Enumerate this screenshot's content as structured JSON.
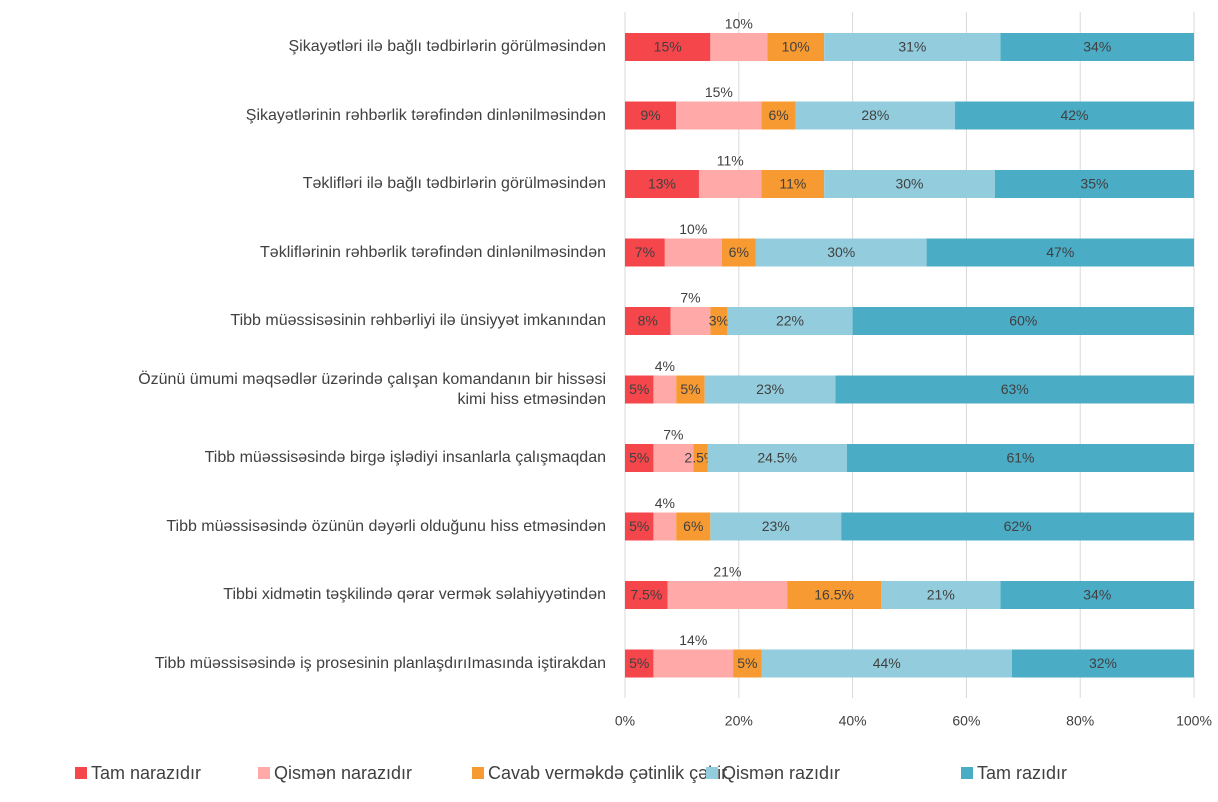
{
  "chart_data": {
    "type": "stacked-bar-horizontal",
    "categories": [
      "Şikayətləri ilə bağlı tədbirlərin görülməsindən",
      "Şikayətlərinin rəhbərlik tərəfindən dinlənilməsindən",
      "Təklifləri ilə bağlı tədbirlərin görülməsindən",
      "Təkliflərinin rəhbərlik tərəfindən dinlənilməsindən",
      "Tibb müəssisəsinin rəhbərliyi ilə ünsiyyət imkanından",
      "Özünü ümumi məqsədlər üzərində çalışan komandanın bir hissəsi\nkimi hiss etməsindən",
      "Tibb müəssisəsində birgə işlədiyi insanlarla çalışmaqdan",
      "Tibb müəssisəsində özünün dəyərli olduğunu hiss etməsindən",
      "Tibbi xidmətin təşkilində qərar vermək səlahiyyətindən",
      "Tibb müəssisəsində iş prosesinin planlaşdırıImasında iştirakdan"
    ],
    "series": [
      {
        "name": "Tam narazıdır",
        "color": "#f5464c",
        "values": [
          15,
          9,
          13,
          7,
          8,
          5,
          5,
          5,
          7.5,
          5
        ],
        "value_labels": [
          "15%",
          "9%",
          "13%",
          "7%",
          "8%",
          "5%",
          "5%",
          "5%",
          "7.5%",
          "5%"
        ]
      },
      {
        "name": "Qismən narazıdır",
        "color": "#ffa9a9",
        "values": [
          10,
          15,
          11,
          10,
          7,
          4,
          7,
          4,
          21,
          14
        ],
        "value_labels": [
          "10%",
          "15%",
          "11%",
          "10%",
          "7%",
          "4%",
          "7%",
          "4%",
          "21%",
          "14%"
        ]
      },
      {
        "name": "Cavab verməkdə çətinlik çəkir",
        "color": "#f79a31",
        "values": [
          10,
          6,
          11,
          6,
          3,
          5,
          2.5,
          6,
          16.5,
          5
        ],
        "value_labels": [
          "10%",
          "6%",
          "11%",
          "6%",
          "3%",
          "5%",
          "2.5%",
          "6%",
          "16.5%",
          "5%"
        ]
      },
      {
        "name": "Qismən razıdır",
        "color": "#93cddd",
        "values": [
          31,
          28,
          30,
          30,
          22,
          23,
          24.5,
          23,
          21,
          44
        ],
        "value_labels": [
          "31%",
          "28%",
          "30%",
          "30%",
          "22%",
          "23%",
          "24.5%",
          "23%",
          "21%",
          "44%"
        ]
      },
      {
        "name": "Tam razıdır",
        "color": "#4bacc6",
        "values": [
          34,
          42,
          35,
          47,
          60,
          63,
          61,
          62,
          34,
          32
        ],
        "value_labels": [
          "34%",
          "42%",
          "35%",
          "47%",
          "60%",
          "63%",
          "61%",
          "62%",
          "34%",
          "32%"
        ]
      }
    ],
    "xlim": [
      0,
      100
    ],
    "xticks": [
      {
        "value": 0,
        "label": "0%"
      },
      {
        "value": 20,
        "label": "20%"
      },
      {
        "value": 40,
        "label": "40%"
      },
      {
        "value": 60,
        "label": "60%"
      },
      {
        "value": 80,
        "label": "80%"
      },
      {
        "value": 100,
        "label": "100%"
      }
    ],
    "grid": true,
    "legend": "bottom"
  }
}
